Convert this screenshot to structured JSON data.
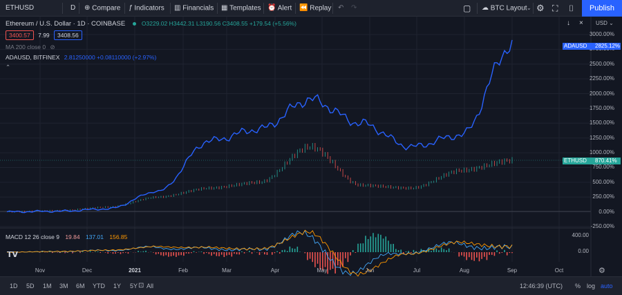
{
  "toolbar": {
    "symbol": "ETHUSD",
    "interval": "D",
    "compare": "Compare",
    "indicators": "Indicators",
    "financials": "Financials",
    "templates": "Templates",
    "alert": "Alert",
    "replay": "Replay",
    "layout": "BTC Layout",
    "publish": "Publish"
  },
  "legend": {
    "title": "Ethereum / U.S. Dollar · 1D · COINBASE",
    "ohlc": "O3229.02  H3442.31  L3190.56  C3408.55  +179.54 (+5.56%)",
    "bid": "3400.57",
    "spread": "7.99",
    "ask": "3408.56",
    "ma": "MA 200 close 0",
    "compare_line": "ADAUSD, BITFINEX",
    "compare_values": "2.81250000  +0.08110000 (+2.97%)",
    "macd_label": "MACD 12 26 close 9",
    "macd_v1": "19.84",
    "macd_v2": "137.01",
    "macd_v3": "156.85"
  },
  "price_axis": {
    "unit_label": "USD",
    "ticks": [
      "3000.00%",
      "2750.00%",
      "2500.00%",
      "2250.00%",
      "2000.00%",
      "1750.00%",
      "1500.00%",
      "1250.00%",
      "1000.00%",
      "750.00%",
      "500.00%",
      "250.00%",
      "0.00%",
      "-250.00%"
    ],
    "ada_tag": {
      "symbol": "ADAUSD",
      "value": "2825.12%"
    },
    "eth_tag": {
      "symbol": "ETHUSD",
      "value": "870.41%"
    }
  },
  "macd_axis": {
    "ticks": [
      "400.00",
      "0.00"
    ]
  },
  "time_axis": {
    "labels": [
      "Nov",
      "Dec",
      "2021",
      "Feb",
      "Mar",
      "Apr",
      "May",
      "Jun",
      "Jul",
      "Aug",
      "Sep",
      "Oct"
    ]
  },
  "bottom": {
    "ranges": [
      "1D",
      "5D",
      "1M",
      "3M",
      "6M",
      "YTD",
      "1Y",
      "5Y",
      "All"
    ],
    "clock": "12:46:39 (UTC)",
    "percent": "%",
    "log": "log",
    "auto": "auto"
  },
  "chart_data": {
    "type": "line",
    "title": "Ethereum / U.S. Dollar · 1D · COINBASE",
    "ylabel": "%",
    "ylim": [
      -250,
      3000
    ],
    "x": [
      "Nov",
      "Dec",
      "2021",
      "Feb",
      "Mar",
      "Apr",
      "May",
      "Jun",
      "Jul",
      "Aug",
      "Sep"
    ],
    "series": [
      {
        "name": "ADAUSD",
        "values": [
          0,
          10,
          50,
          350,
          1200,
          1400,
          1900,
          1500,
          1100,
          1300,
          2825
        ]
      },
      {
        "name": "ETHUSD",
        "values": [
          0,
          20,
          80,
          250,
          400,
          500,
          1100,
          450,
          400,
          700,
          870
        ]
      }
    ],
    "colors": {
      "ada": "#2962ff",
      "eth_up": "#26a69a",
      "eth_down": "#ef5350"
    }
  }
}
